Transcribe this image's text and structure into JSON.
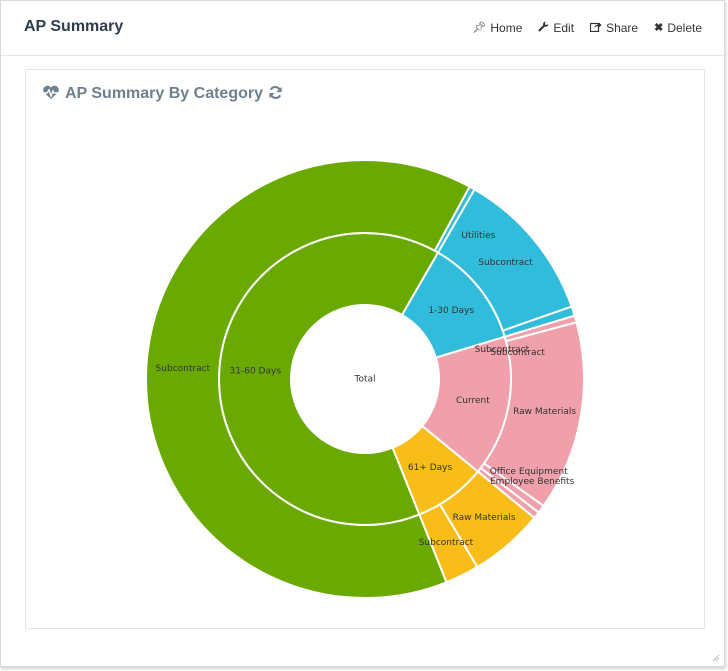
{
  "page": {
    "title": "AP Summary",
    "actions": [
      {
        "label": "Home",
        "icon": "pin-icon"
      },
      {
        "label": "Edit",
        "icon": "wrench-icon"
      },
      {
        "label": "Share",
        "icon": "share-icon"
      },
      {
        "label": "Delete",
        "icon": "close-icon"
      }
    ]
  },
  "panel": {
    "title": "AP Summary By Category",
    "title_icon": "heartbeat-icon",
    "refresh_icon": "refresh-icon"
  },
  "chart_data": {
    "type": "sunburst",
    "center_label": "Total",
    "rings": [
      {
        "level": "aging bucket",
        "segments": [
          {
            "label": "1-30 Days",
            "value": 12.0,
            "color": "#31bcdb"
          },
          {
            "label": "Current",
            "value": 15.6,
            "color": "#f0a0aa"
          },
          {
            "label": "61+ Days",
            "value": 8.0,
            "color": "#f8bd19"
          },
          {
            "label": "31-60 Days",
            "value": 64.4,
            "color": "#6aaa00"
          }
        ]
      },
      {
        "level": "category",
        "segments": [
          {
            "label": "Subcontract",
            "parent": "1-30 Days",
            "value": 11.3,
            "color": "#31bcdb"
          },
          {
            "label": "Subcontract",
            "parent": "1-30 Days",
            "value": 0.7,
            "color": "#31bcdb"
          },
          {
            "label": "Subcontract",
            "parent": "Current",
            "value": 0.5,
            "color": "#f0a0aa"
          },
          {
            "label": "Raw Materials",
            "parent": "Current",
            "value": 14.0,
            "color": "#f0a0aa"
          },
          {
            "label": "Employee Benefits",
            "parent": "Current",
            "value": 0.6,
            "color": "#f0a0aa"
          },
          {
            "label": "Office Equipment",
            "parent": "Current",
            "value": 0.5,
            "color": "#f0a0aa"
          },
          {
            "label": "Raw Materials",
            "parent": "61+ Days",
            "value": 5.5,
            "color": "#f8bd19"
          },
          {
            "label": "Subcontract",
            "parent": "61+ Days",
            "value": 2.5,
            "color": "#f8bd19"
          },
          {
            "label": "Subcontract",
            "parent": "31-60 Days",
            "value": 64.0,
            "color": "#6aaa00"
          },
          {
            "label": "Utilities",
            "parent": "31-60 Days",
            "value": 0.4,
            "color": "#31bcdb"
          }
        ]
      }
    ]
  }
}
